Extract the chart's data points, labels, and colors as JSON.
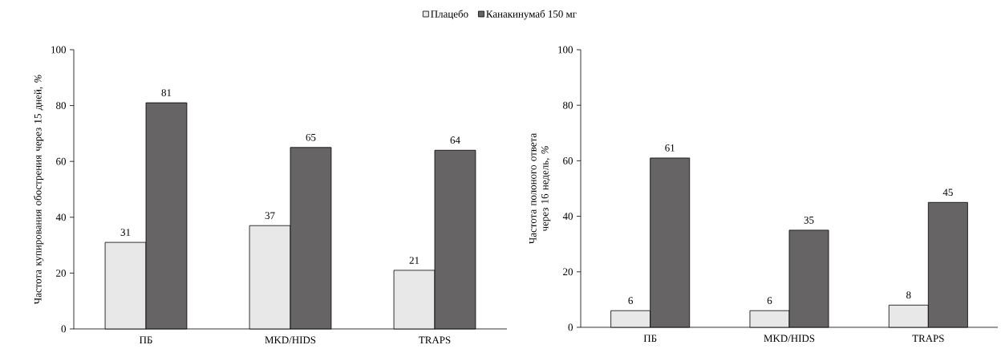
{
  "chart_data": [
    {
      "type": "bar",
      "categories": [
        "ПБ",
        "MKD/HIDS",
        "TRAPS"
      ],
      "ylabel": "Частота купирования обострения через 15 дней, *%*",
      "ylim": [
        0,
        100
      ],
      "yticks": [
        0,
        20,
        40,
        60,
        80,
        100
      ],
      "legend": "top",
      "data_labels": true,
      "series": [
        {
          "name": "Плацебо",
          "color": "#e8e8e8",
          "values": [
            31,
            37,
            21
          ]
        },
        {
          "name": "Канакинумаб 150 мг",
          "color": "#666464",
          "values": [
            81,
            65,
            64
          ]
        }
      ]
    },
    {
      "type": "bar",
      "categories": [
        "ПБ",
        "MKD/HIDS",
        "TRAPS"
      ],
      "ylabel": "Частота полоного ответа через 16 недель, *%*",
      "ylim": [
        0,
        100
      ],
      "yticks": [
        0,
        20,
        40,
        60,
        80,
        100
      ],
      "data_labels": true,
      "series": [
        {
          "color": "#e8e8e8",
          "values": [
            6,
            6,
            8
          ]
        },
        {
          "color": "#666464",
          "values": [
            61,
            35,
            45
          ]
        }
      ]
    }
  ]
}
